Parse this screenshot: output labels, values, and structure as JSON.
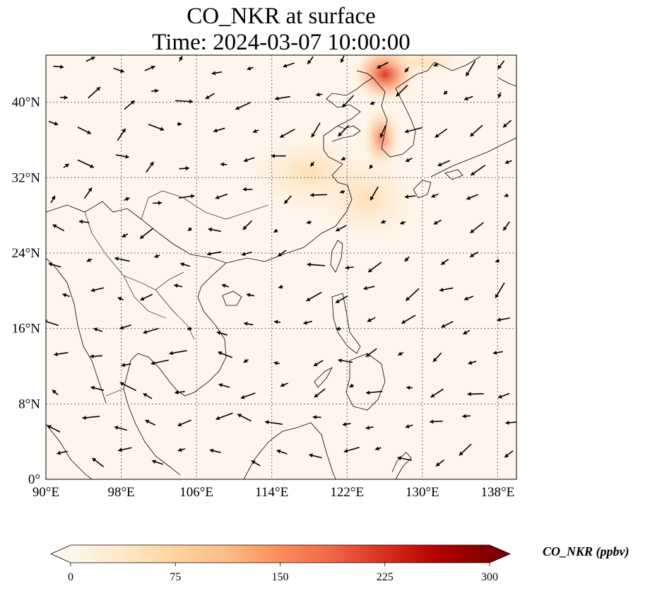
{
  "title": {
    "line1": "CO_NKR at surface",
    "line2": "Time: 2024-03-07 10:00:00"
  },
  "map": {
    "lon_range": [
      90,
      140
    ],
    "lat_range": [
      0,
      45
    ],
    "lon_ticks": [
      "90°E",
      "98°E",
      "106°E",
      "114°E",
      "122°E",
      "130°E",
      "138°E"
    ],
    "lat_ticks": [
      "0°",
      "8°N",
      "16°N",
      "24°N",
      "32°N",
      "40°N"
    ],
    "gridlines": "dotted",
    "background_color": "#fff5ea",
    "coastline_color": "#000000",
    "vector_color": "#000000",
    "hotspots": [
      {
        "region": "Northeast China / Korean border",
        "lon": 125.5,
        "lat": 44,
        "intensity": "high"
      },
      {
        "region": "Korean Peninsula west coast",
        "lon": 125.8,
        "lat": 36,
        "intensity": "medium-high"
      },
      {
        "region": "Yellow Sea / East China",
        "lon": 122,
        "lat": 33,
        "intensity": "low-medium"
      }
    ]
  },
  "colorbar": {
    "title": "CO_NKR (ppbv)",
    "ticks": [
      "0",
      "75",
      "150",
      "225",
      "300"
    ],
    "min": 0,
    "max": 300,
    "colormap": "OrRd",
    "extend": "both",
    "colors": [
      "#fff7ec",
      "#fee8c8",
      "#fdd49e",
      "#fdbb84",
      "#fc8d59",
      "#ef6548",
      "#d7301f",
      "#b30000",
      "#7f0000"
    ]
  }
}
